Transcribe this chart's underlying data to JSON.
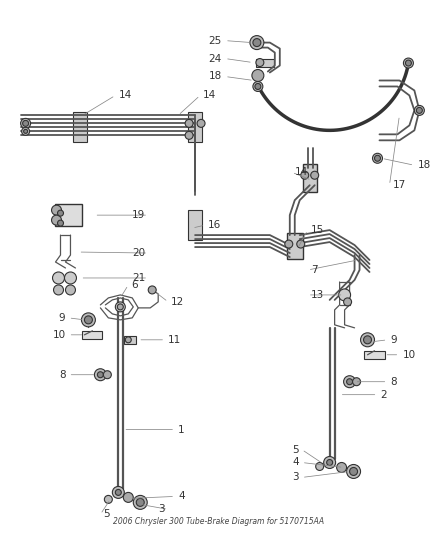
{
  "title": "2006 Chrysler 300 Tube-Brake Diagram for 5170715AA",
  "bg_color": "#ffffff",
  "lc": "#555555",
  "lc_dark": "#333333",
  "lc_light": "#888888",
  "fig_width": 4.38,
  "fig_height": 5.33,
  "dpi": 100
}
